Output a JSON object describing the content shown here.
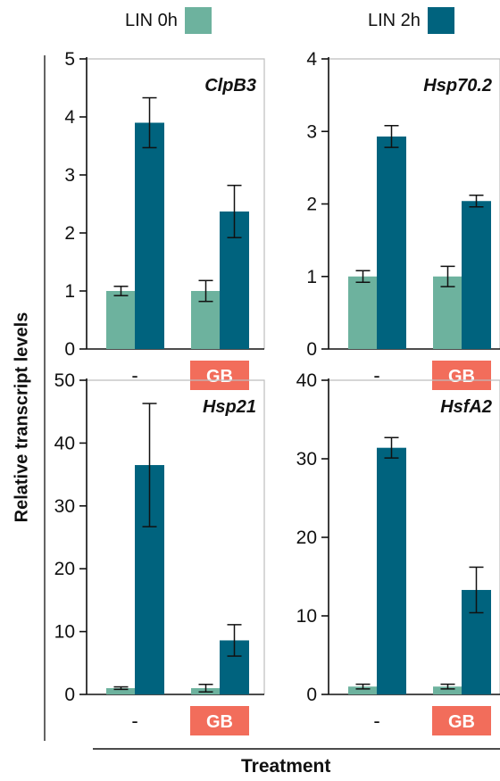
{
  "legend": [
    {
      "label": "LIN 0h",
      "color": "#6db29e"
    },
    {
      "label": "LIN 2h",
      "color": "#00637e"
    }
  ],
  "y_axis_title": "Relative transcript levels",
  "x_axis_title": "Treatment",
  "treatment_labels": [
    "-",
    "GB"
  ],
  "gb_badge_color": "#f26d5b",
  "chart_data": [
    {
      "type": "bar",
      "title": "ClpB3",
      "categories": [
        "-",
        "GB"
      ],
      "ylim": [
        0,
        5
      ],
      "yticks": [
        0,
        1,
        2,
        3,
        4,
        5
      ],
      "series": [
        {
          "name": "LIN 0h",
          "values": [
            1.0,
            1.0
          ],
          "errors": [
            0.08,
            0.18
          ]
        },
        {
          "name": "LIN 2h",
          "values": [
            3.9,
            2.37
          ],
          "errors": [
            0.43,
            0.45
          ]
        }
      ]
    },
    {
      "type": "bar",
      "title": "Hsp70.2",
      "categories": [
        "-",
        "GB"
      ],
      "ylim": [
        0,
        4
      ],
      "yticks": [
        0,
        1,
        2,
        3,
        4
      ],
      "series": [
        {
          "name": "LIN 0h",
          "values": [
            1.0,
            1.0
          ],
          "errors": [
            0.08,
            0.14
          ]
        },
        {
          "name": "LIN 2h",
          "values": [
            2.93,
            2.04
          ],
          "errors": [
            0.15,
            0.08
          ]
        }
      ]
    },
    {
      "type": "bar",
      "title": "Hsp21",
      "categories": [
        "-",
        "GB"
      ],
      "ylim": [
        0,
        50
      ],
      "yticks": [
        0,
        10,
        20,
        30,
        40,
        50
      ],
      "series": [
        {
          "name": "LIN 0h",
          "values": [
            1.0,
            1.0
          ],
          "errors": [
            0.2,
            0.6
          ]
        },
        {
          "name": "LIN 2h",
          "values": [
            36.5,
            8.6
          ],
          "errors": [
            9.8,
            2.5
          ]
        }
      ]
    },
    {
      "type": "bar",
      "title": "HsfA2",
      "categories": [
        "-",
        "GB"
      ],
      "ylim": [
        0,
        40
      ],
      "yticks": [
        0,
        10,
        20,
        30,
        40
      ],
      "series": [
        {
          "name": "LIN 0h",
          "values": [
            1.0,
            1.0
          ],
          "errors": [
            0.3,
            0.3
          ]
        },
        {
          "name": "LIN 2h",
          "values": [
            31.4,
            13.3
          ],
          "errors": [
            1.3,
            2.9
          ]
        }
      ]
    }
  ]
}
